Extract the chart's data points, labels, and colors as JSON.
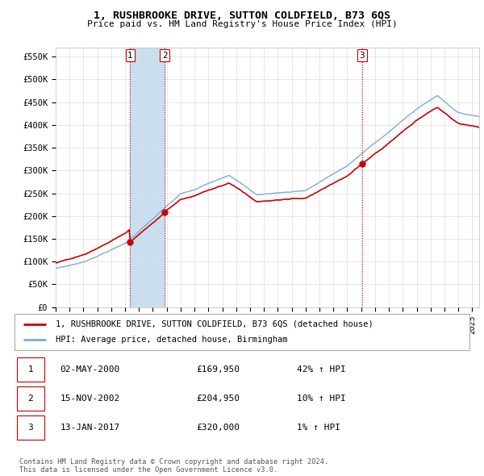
{
  "title_line1": "1, RUSHBROOKE DRIVE, SUTTON COLDFIELD, B73 6QS",
  "title_line2": "Price paid vs. HM Land Registry's House Price Index (HPI)",
  "ylim": [
    0,
    570000
  ],
  "yticks": [
    0,
    50000,
    100000,
    150000,
    200000,
    250000,
    300000,
    350000,
    400000,
    450000,
    500000,
    550000
  ],
  "ytick_labels": [
    "£0",
    "£50K",
    "£100K",
    "£150K",
    "£200K",
    "£250K",
    "£300K",
    "£350K",
    "£400K",
    "£450K",
    "£500K",
    "£550K"
  ],
  "hpi_color": "#7aaddb",
  "price_color": "#cc0000",
  "vline_color": "#cc0000",
  "grid_color": "#dddddd",
  "bg_color": "#ffffff",
  "legend_border_color": "#aaaaaa",
  "shade_color": "#c8dff0",
  "sale1_date": 2000.37,
  "sale1_price": 169950,
  "sale2_date": 2002.87,
  "sale2_price": 204950,
  "sale3_date": 2017.04,
  "sale3_price": 320000,
  "table_rows": [
    {
      "num": "1",
      "date": "02-MAY-2000",
      "price": "£169,950",
      "change": "42% ↑ HPI"
    },
    {
      "num": "2",
      "date": "15-NOV-2002",
      "price": "£204,950",
      "change": "10% ↑ HPI"
    },
    {
      "num": "3",
      "date": "13-JAN-2017",
      "price": "£320,000",
      "change": "1% ↑ HPI"
    }
  ],
  "footnote": "Contains HM Land Registry data © Crown copyright and database right 2024.\nThis data is licensed under the Open Government Licence v3.0.",
  "legend_line1": "1, RUSHBROOKE DRIVE, SUTTON COLDFIELD, B73 6QS (detached house)",
  "legend_line2": "HPI: Average price, detached house, Birmingham"
}
